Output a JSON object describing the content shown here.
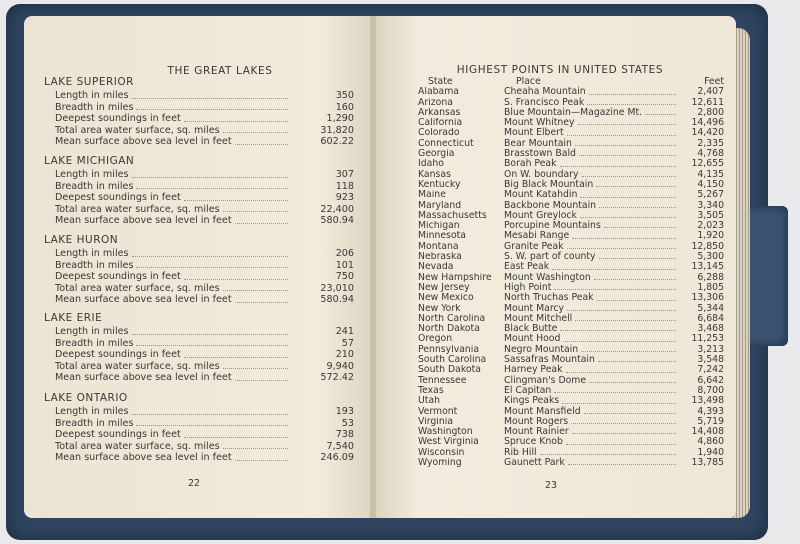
{
  "left_page": {
    "title": "THE GREAT LAKES",
    "page_number": "22",
    "lakes": [
      {
        "name": "LAKE SUPERIOR",
        "rows": [
          {
            "label": "Length in miles",
            "value": "350"
          },
          {
            "label": "Breadth in miles",
            "value": "160"
          },
          {
            "label": "Deepest soundings in feet",
            "value": "1,290"
          },
          {
            "label": "Total area water surface, sq. miles",
            "value": "31,820"
          },
          {
            "label": "Mean surface above sea level in feet",
            "value": "602.22"
          }
        ]
      },
      {
        "name": "LAKE MICHIGAN",
        "rows": [
          {
            "label": "Length in miles",
            "value": "307"
          },
          {
            "label": "Breadth in miles",
            "value": "118"
          },
          {
            "label": "Deepest soundings in feet",
            "value": "923"
          },
          {
            "label": "Total area water surface, sq. miles",
            "value": "22,400"
          },
          {
            "label": "Mean surface above sea level in feet",
            "value": "580.94"
          }
        ]
      },
      {
        "name": "LAKE HURON",
        "rows": [
          {
            "label": "Length in miles",
            "value": "206"
          },
          {
            "label": "Breadth in miles",
            "value": "101"
          },
          {
            "label": "Deepest soundings in feet",
            "value": "750"
          },
          {
            "label": "Total area water surface, sq. miles",
            "value": "23,010"
          },
          {
            "label": "Mean surface above sea level in feet",
            "value": "580.94"
          }
        ]
      },
      {
        "name": "LAKE ERIE",
        "rows": [
          {
            "label": "Length in miles",
            "value": "241"
          },
          {
            "label": "Breadth in miles",
            "value": "57"
          },
          {
            "label": "Deepest soundings in feet",
            "value": "210"
          },
          {
            "label": "Total area water surface, sq. miles",
            "value": "9,940"
          },
          {
            "label": "Mean surface above sea level in feet",
            "value": "572.42"
          }
        ]
      },
      {
        "name": "LAKE ONTARIO",
        "rows": [
          {
            "label": "Length in miles",
            "value": "193"
          },
          {
            "label": "Breadth in miles",
            "value": "53"
          },
          {
            "label": "Deepest soundings in feet",
            "value": "738"
          },
          {
            "label": "Total area water surface, sq. miles",
            "value": "7,540"
          },
          {
            "label": "Mean surface above sea level in feet",
            "value": "246.09"
          }
        ]
      }
    ]
  },
  "right_page": {
    "title": "HIGHEST POINTS IN UNITED STATES",
    "page_number": "23",
    "headers": {
      "state": "State",
      "place": "Place",
      "feet": "Feet"
    },
    "rows": [
      [
        "Alabama",
        "Cheaha Mountain",
        "2,407"
      ],
      [
        "Arizona",
        "S. Francisco Peak",
        "12,611"
      ],
      [
        "Arkansas",
        "Blue Mountain—Magazine Mt.",
        "2,800"
      ],
      [
        "California",
        "Mount Whitney",
        "14,496"
      ],
      [
        "Colorado",
        "Mount Elbert",
        "14,420"
      ],
      [
        "Connecticut",
        "Bear Mountain",
        "2,335"
      ],
      [
        "Georgia",
        "Brasstown Bald",
        "4,768"
      ],
      [
        "Idaho",
        "Borah Peak",
        "12,655"
      ],
      [
        "Kansas",
        "On W. boundary",
        "4,135"
      ],
      [
        "Kentucky",
        "Big Black Mountain",
        "4,150"
      ],
      [
        "Maine",
        "Mount Katahdin",
        "5,267"
      ],
      [
        "Maryland",
        "Backbone Mountain",
        "3,340"
      ],
      [
        "Massachusetts",
        "Mount Greylock",
        "3,505"
      ],
      [
        "Michigan",
        "Porcupine Mountains",
        "2,023"
      ],
      [
        "Minnesota",
        "Mesabi Range",
        "1,920"
      ],
      [
        "Montana",
        "Granite Peak",
        "12,850"
      ],
      [
        "Nebraska",
        "S. W. part of county",
        "5,300"
      ],
      [
        "Nevada",
        "East Peak",
        "13,145"
      ],
      [
        "New Hampshire",
        "Mount Washington",
        "6,288"
      ],
      [
        "New Jersey",
        "High Point",
        "1,805"
      ],
      [
        "New Mexico",
        "North Truchas Peak",
        "13,306"
      ],
      [
        "New York",
        "Mount Marcy",
        "5,344"
      ],
      [
        "North Carolina",
        "Mount Mitchell",
        "6,684"
      ],
      [
        "North Dakota",
        "Black Butte",
        "3,468"
      ],
      [
        "Oregon",
        "Mount Hood",
        "11,253"
      ],
      [
        "Pennsylvania",
        "Negro Mountain",
        "3,213"
      ],
      [
        "South Carolina",
        "Sassafras Mountain",
        "3,548"
      ],
      [
        "South Dakota",
        "Harney Peak",
        "7,242"
      ],
      [
        "Tennessee",
        "Clingman's Dome",
        "6,642"
      ],
      [
        "Texas",
        "El Capitan",
        "8,700"
      ],
      [
        "Utah",
        "Kings Peaks",
        "13,498"
      ],
      [
        "Vermont",
        "Mount Mansfield",
        "4,393"
      ],
      [
        "Virginia",
        "Mount Rogers",
        "5,719"
      ],
      [
        "Washington",
        "Mount Rainier",
        "14,408"
      ],
      [
        "West Virginia",
        "Spruce Knob",
        "4,860"
      ],
      [
        "Wisconsin",
        "Rib Hill",
        "1,940"
      ],
      [
        "Wyoming",
        "Gaunett Park",
        "13,785"
      ]
    ]
  }
}
